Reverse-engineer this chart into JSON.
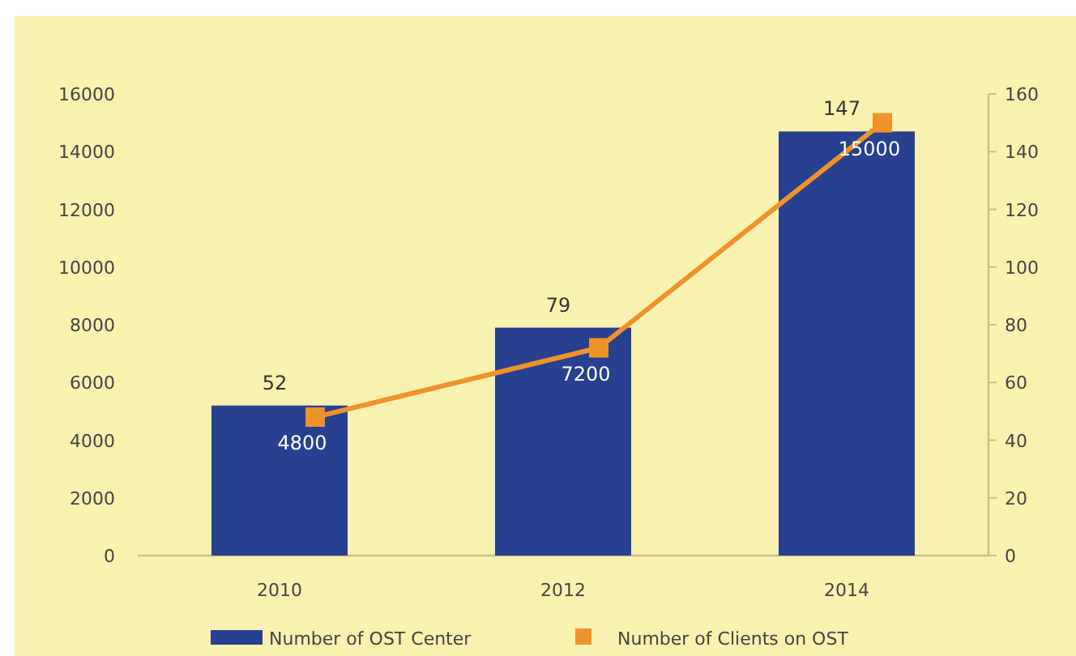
{
  "chart_data": {
    "type": "bar",
    "categories": [
      "2010",
      "2012",
      "2014"
    ],
    "series": [
      {
        "name": "Number of OST Center",
        "axis": "y2",
        "color": "#27408f",
        "values": [
          52,
          79,
          147
        ]
      },
      {
        "name": "Number of Clients on OST",
        "type": "line",
        "axis": "y",
        "color": "#f0922a",
        "values": [
          4800,
          7200,
          15000
        ]
      }
    ],
    "ylim": [
      0,
      16000
    ],
    "yticks": [
      0,
      2000,
      4000,
      6000,
      8000,
      10000,
      12000,
      14000,
      16000
    ],
    "y2lim": [
      0,
      160
    ],
    "y2ticks": [
      0,
      20,
      40,
      60,
      80,
      100,
      120,
      140,
      160
    ],
    "data_labels": true,
    "legend": "bottom",
    "marker": "square",
    "grid": false
  }
}
